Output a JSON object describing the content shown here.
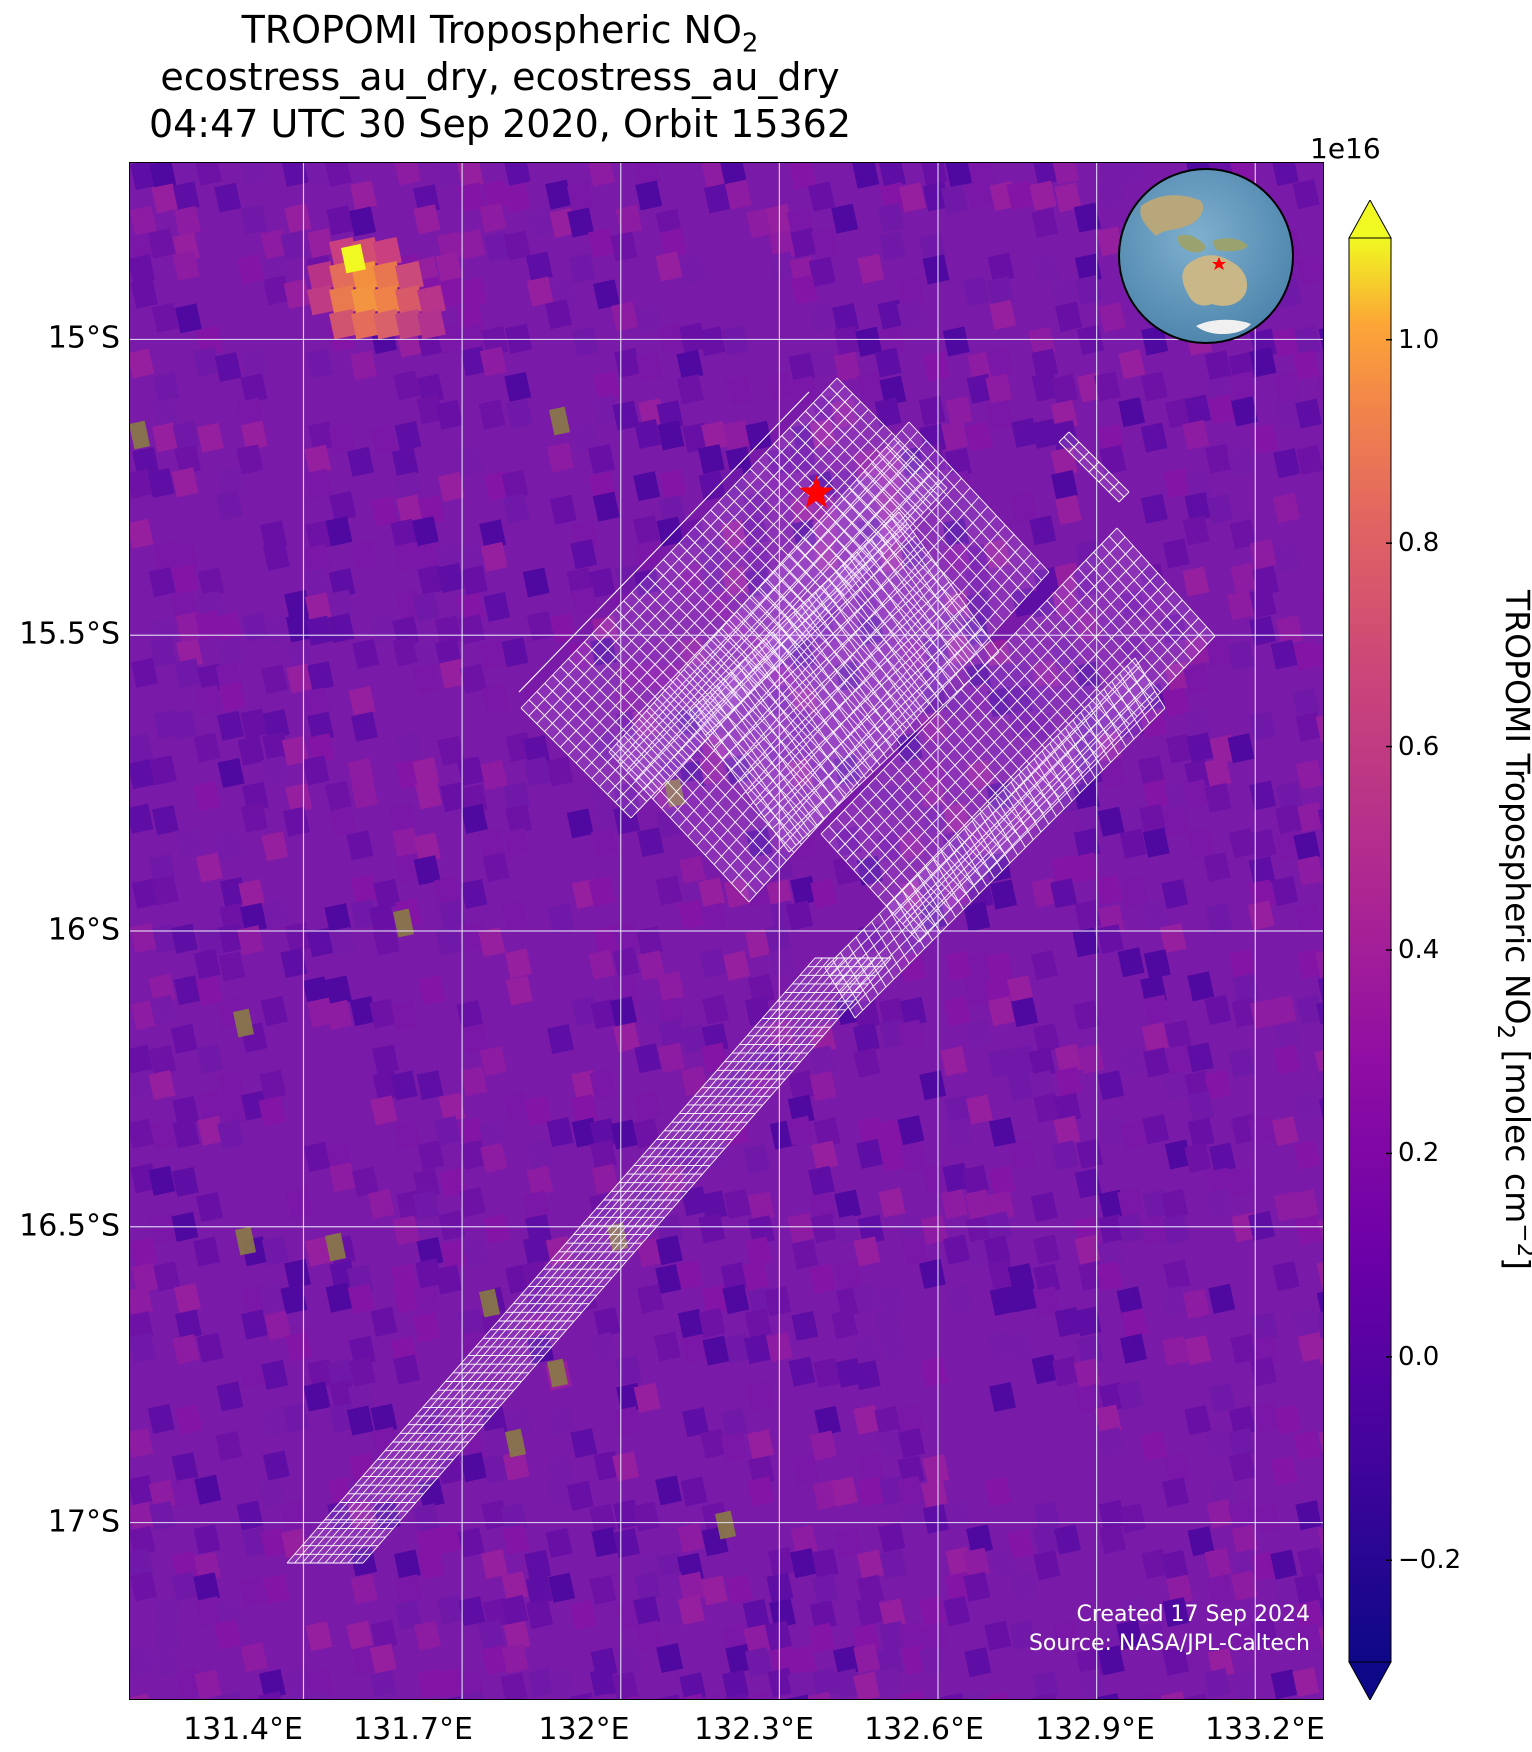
{
  "title": {
    "line1": "TROPOMI Tropospheric NO",
    "line1_sub": "2",
    "line2": "ecostress_au_dry, ecostress_au_dry",
    "line3": "04:47 UTC 30 Sep 2020, Orbit 15362"
  },
  "map": {
    "lon_range": [
      131.07,
      133.33
    ],
    "lat_range": [
      -17.3,
      -14.7
    ],
    "lat_ticks": [
      {
        "value": -15.0,
        "label": "15°S"
      },
      {
        "value": -15.5,
        "label": "15.5°S"
      },
      {
        "value": -16.0,
        "label": "16°S"
      },
      {
        "value": -16.5,
        "label": "16.5°S"
      },
      {
        "value": -17.0,
        "label": "17°S"
      }
    ],
    "lon_ticks": [
      {
        "value": 131.4,
        "label": "131.4°E"
      },
      {
        "value": 131.7,
        "label": "131.7°E"
      },
      {
        "value": 132.0,
        "label": "132°E"
      },
      {
        "value": 132.3,
        "label": "132.3°E"
      },
      {
        "value": 132.6,
        "label": "132.6°E"
      },
      {
        "value": 132.9,
        "label": "132.9°E"
      },
      {
        "value": 133.2,
        "label": "133.2°E"
      }
    ],
    "target_marker": {
      "lon": 132.37,
      "lat": -15.26,
      "color": "#ff0000",
      "icon": "red-star-icon"
    },
    "background_color": "#7a1aa8",
    "swath_outline_color": "#ffffff",
    "grid": true
  },
  "colorbar": {
    "label": "TROPOMI Tropospheric NO",
    "label_sub": "2",
    "label_unit": " [molec cm",
    "label_unit_sup": "−2",
    "label_end": "]",
    "exponent": "1e16",
    "range": [
      -0.3,
      1.1
    ],
    "colormap": "plasma",
    "extend": "both",
    "ticks": [
      {
        "value": 1.0,
        "label": "1.0"
      },
      {
        "value": 0.8,
        "label": "0.8"
      },
      {
        "value": 0.6,
        "label": "0.6"
      },
      {
        "value": 0.4,
        "label": "0.4"
      },
      {
        "value": 0.2,
        "label": "0.2"
      },
      {
        "value": 0.0,
        "label": "0.0"
      },
      {
        "value": -0.2,
        "label": "−0.2"
      }
    ]
  },
  "credit": {
    "line1": "Created 17 Sep 2024",
    "line2": "Source: NASA/JPL-Caltech"
  },
  "inset_globe": {
    "icon": "globe-inset-icon",
    "marker_color": "#ff0000"
  }
}
